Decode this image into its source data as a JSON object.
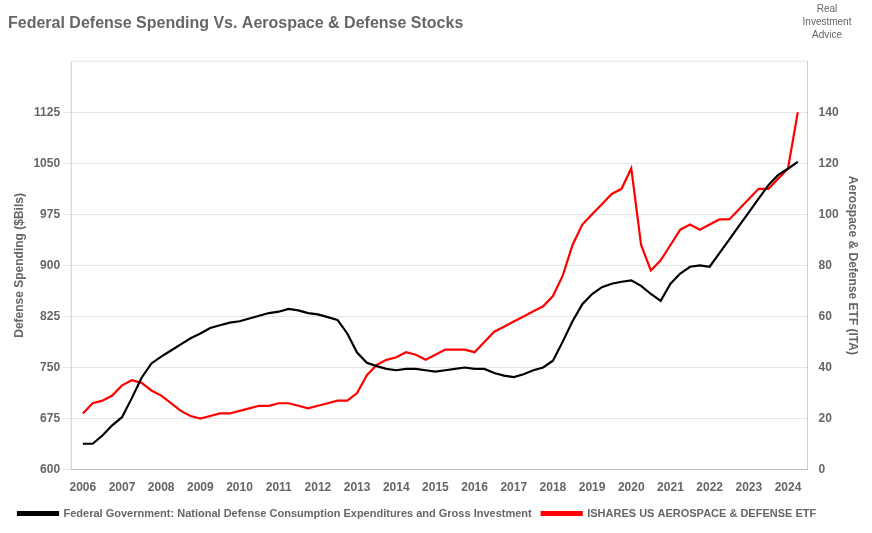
{
  "chart_data": {
    "type": "line",
    "title": "Federal Defense Spending Vs. Aerospace & Defense Stocks",
    "ylabel": "Defense Spending ($Bils)",
    "y2label": "Aerospace & Defense ETF (ITA)",
    "annotations": [
      "Real\nInvestment\nAdvice"
    ],
    "x": [
      2006.0,
      2006.25,
      2006.5,
      2006.75,
      2007.0,
      2007.25,
      2007.5,
      2007.75,
      2008.0,
      2008.25,
      2008.5,
      2008.75,
      2009.0,
      2009.25,
      2009.5,
      2009.75,
      2010.0,
      2010.25,
      2010.5,
      2010.75,
      2011.0,
      2011.25,
      2011.5,
      2011.75,
      2012.0,
      2012.25,
      2012.5,
      2012.75,
      2013.0,
      2013.25,
      2013.5,
      2013.75,
      2014.0,
      2014.25,
      2014.5,
      2014.75,
      2015.0,
      2015.25,
      2015.5,
      2015.75,
      2016.0,
      2016.25,
      2016.5,
      2016.75,
      2017.0,
      2017.25,
      2017.5,
      2017.75,
      2018.0,
      2018.25,
      2018.5,
      2018.75,
      2019.0,
      2019.25,
      2019.5,
      2019.75,
      2020.0,
      2020.25,
      2020.5,
      2020.75,
      2021.0,
      2021.25,
      2021.5,
      2021.75,
      2022.0,
      2022.25,
      2022.5,
      2022.75,
      2023.0,
      2023.25,
      2023.5,
      2023.75,
      2024.0,
      2024.25
    ],
    "xlim": [
      2005.7,
      2024.5
    ],
    "xticks": [
      2006,
      2007,
      2008,
      2009,
      2010,
      2011,
      2012,
      2013,
      2014,
      2015,
      2016,
      2017,
      2018,
      2019,
      2020,
      2021,
      2022,
      2023,
      2024
    ],
    "ylim": [
      600,
      1200
    ],
    "yticks": [
      600,
      675,
      750,
      825,
      900,
      975,
      1050,
      1125
    ],
    "y2lim": [
      0,
      160
    ],
    "y2ticks": [
      0,
      20,
      40,
      60,
      80,
      100,
      120,
      140
    ],
    "grid": "y",
    "legend": "bottom left",
    "series": [
      {
        "name": "Federal Government: National Defense Consumption Expenditures and Gross Investment",
        "color": "black",
        "values": [
          638,
          638,
          650,
          665,
          677,
          705,
          735,
          756,
          766,
          775,
          784,
          793,
          800,
          808,
          812,
          816,
          818,
          822,
          826,
          830,
          832,
          836,
          834,
          830,
          828,
          824,
          820,
          800,
          772,
          757,
          752,
          748,
          746,
          748,
          748,
          746,
          744,
          746,
          748,
          750,
          748,
          748,
          742,
          738,
          736,
          740,
          746,
          750,
          760,
          788,
          818,
          843,
          858,
          868,
          873,
          876,
          878,
          870,
          858,
          848,
          873,
          888,
          898,
          900,
          898,
          918,
          938,
          958,
          978,
          998,
          1018,
          1033,
          1042,
          1052
        ]
      },
      {
        "name": "ISHARES US AEROSPACE & DEFENSE ETF",
        "color": "red",
        "axis": "y2",
        "values": [
          22,
          26,
          27,
          29,
          33,
          35,
          34,
          31,
          29,
          26,
          23,
          21,
          20,
          21,
          22,
          22,
          23,
          24,
          25,
          25,
          26,
          26,
          25,
          24,
          25,
          26,
          27,
          27,
          30,
          37,
          41,
          43,
          44,
          46,
          45,
          43,
          45,
          47,
          47,
          47,
          46,
          50,
          54,
          56,
          58,
          60,
          62,
          64,
          68,
          76,
          88,
          96,
          100,
          104,
          108,
          110,
          118,
          88,
          78,
          82,
          88,
          94,
          96,
          94,
          96,
          98,
          98,
          102,
          106,
          110,
          110,
          114,
          118,
          140
        ]
      }
    ]
  }
}
